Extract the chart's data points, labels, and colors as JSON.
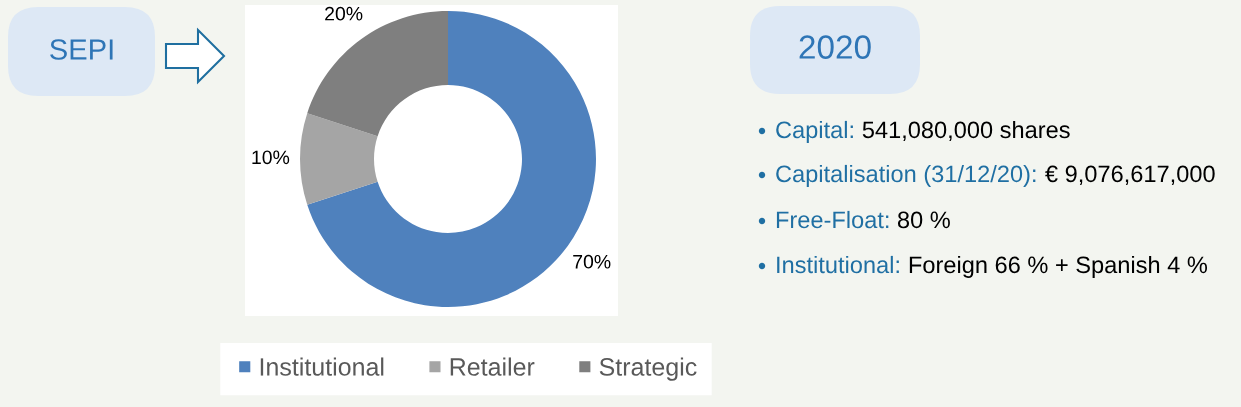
{
  "chart_data": [
    {
      "type": "donut",
      "categories": [
        "Institutional",
        "Retailer",
        "Strategic"
      ],
      "values": [
        70,
        10,
        20
      ],
      "colors": [
        "#4f81bd",
        "#a5a5a5",
        "#7f7f7f"
      ],
      "value_labels": [
        "70%",
        "10%",
        "20%"
      ],
      "legend": "bottom",
      "annotations": [
        "SEPI"
      ]
    },
    {
      "type": "other",
      "title": "2020",
      "annotations": [
        "Capital: 541,080,000 shares",
        "Capitalisation (31/12/20): € 9,076,617,000",
        "Free-Float: 80 %",
        "Institutional: Foreign 66 % + Spanish 4 %"
      ]
    }
  ]
}
